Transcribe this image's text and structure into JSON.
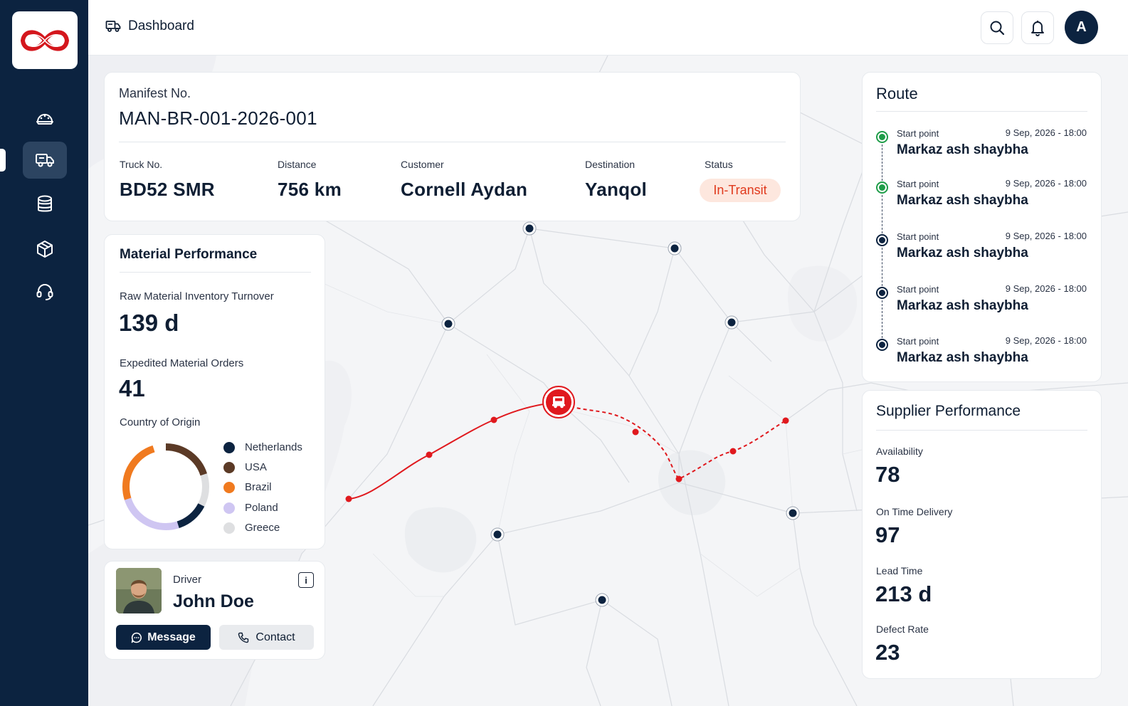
{
  "header": {
    "title": "Dashboard",
    "avatar_initial": "A"
  },
  "manifest": {
    "label": "Manifest No.",
    "number": "MAN-BR-001-2026-001",
    "fields": [
      {
        "label": "Truck No.",
        "value": "BD52 SMR"
      },
      {
        "label": "Distance",
        "value": "756 km"
      },
      {
        "label": "Customer",
        "value": "Cornell Aydan"
      },
      {
        "label": "Destination",
        "value": "Yanqol"
      },
      {
        "label": "Status",
        "value": "In-Transit"
      }
    ]
  },
  "material": {
    "title": "Material Performance",
    "turnover_label": "Raw Material Inventory Turnover",
    "turnover_value": "139 d",
    "orders_label": "Expedited Material Orders",
    "orders_value": "41",
    "origin_label": "Country of Origin",
    "origin": [
      {
        "name": "Netherlands",
        "color": "#0c2340",
        "share": 0.125
      },
      {
        "name": "USA",
        "color": "#5b3a26",
        "share": 0.2
      },
      {
        "name": "Brazil",
        "color": "#f07a1f",
        "share": 0.25
      },
      {
        "name": "Poland",
        "color": "#cfc6f2",
        "share": 0.25
      },
      {
        "name": "Greece",
        "color": "#dedfe1",
        "share": 0.125
      }
    ]
  },
  "driver": {
    "role": "Driver",
    "name": "John Doe",
    "message_label": "Message",
    "contact_label": "Contact"
  },
  "route": {
    "title": "Route",
    "stops": [
      {
        "label": "Start point",
        "date": "9 Sep, 2026 - 18:00",
        "place": "Markaz ash shaybha",
        "status": "done",
        "color": "#1f9d49"
      },
      {
        "label": "Start point",
        "date": "9 Sep, 2026 - 18:00",
        "place": "Markaz ash shaybha",
        "status": "done",
        "color": "#1f9d49"
      },
      {
        "label": "Start point",
        "date": "9 Sep, 2026 - 18:00",
        "place": "Markaz ash shaybha",
        "status": "pending",
        "color": "#0c2340"
      },
      {
        "label": "Start point",
        "date": "9 Sep, 2026 - 18:00",
        "place": "Markaz ash shaybha",
        "status": "pending",
        "color": "#0c2340"
      },
      {
        "label": "Start point",
        "date": "9 Sep, 2026 - 18:00",
        "place": "Markaz ash shaybha",
        "status": "pending",
        "color": "#0c2340"
      }
    ]
  },
  "supplier": {
    "title": "Supplier Performance",
    "metrics": [
      {
        "label": "Availability",
        "value": "78"
      },
      {
        "label": "On Time Delivery",
        "value": "97"
      },
      {
        "label": "Lead Time",
        "value": "213 d"
      },
      {
        "label": "Defect Rate",
        "value": "23"
      }
    ]
  },
  "colors": {
    "sidebar": "#0c2340",
    "accent_red": "#e0191e",
    "status_bg": "#fde7de",
    "status_text": "#e0391c"
  },
  "icons": {
    "sidebar": [
      "dashboard-gauge-icon",
      "truck-icon",
      "database-icon",
      "package-icon",
      "headset-icon"
    ],
    "topbar": [
      "truck-icon",
      "search-icon",
      "bell-icon"
    ],
    "map": [
      "truck-marker-icon",
      "map-node-icon"
    ]
  }
}
